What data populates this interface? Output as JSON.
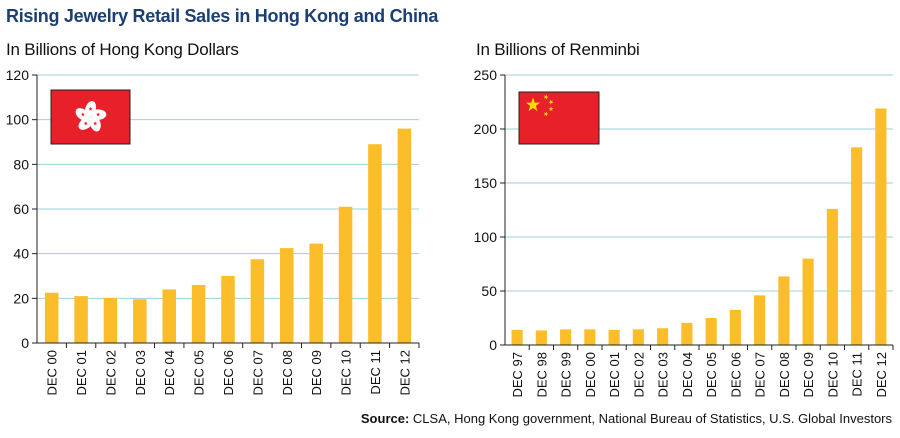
{
  "title": "Rising Jewelry Retail Sales in Hong Kong and China",
  "source": {
    "label": "Source:",
    "text": "CLSA, Hong Kong government, National Bureau of Statistics, U.S. Global Investors"
  },
  "colors": {
    "bar": "#fbbd2a",
    "grid": "#9fd0de",
    "title": "#1b3f73",
    "flag_red": "#e8202a",
    "star_yellow": "#ffde00"
  },
  "chart_data": [
    {
      "type": "bar",
      "title": "In Billions of Hong Kong Dollars",
      "flag": "hong-kong-flag",
      "categories": [
        "DEC 00",
        "DEC 01",
        "DEC 02",
        "DEC 03",
        "DEC 04",
        "DEC 05",
        "DEC 06",
        "DEC 07",
        "DEC 08",
        "DEC 09",
        "DEC 10",
        "DEC 11",
        "DEC 12"
      ],
      "values": [
        22.5,
        21,
        20.2,
        19.6,
        24,
        26,
        30,
        37.5,
        42.5,
        44.5,
        61,
        89,
        96
      ],
      "ylim": [
        0,
        120
      ],
      "yticks": [
        0,
        20,
        40,
        60,
        80,
        100,
        120
      ],
      "grid": true
    },
    {
      "type": "bar",
      "title": "In Billions of Renminbi",
      "flag": "china-flag",
      "categories": [
        "DEC 97",
        "DEC 98",
        "DEC 99",
        "DEC 00",
        "DEC 01",
        "DEC 02",
        "DEC 03",
        "DEC 04",
        "DEC 05",
        "DEC 06",
        "DEC 07",
        "DEC 08",
        "DEC 09",
        "DEC 10",
        "DEC 11",
        "DEC 12"
      ],
      "values": [
        14,
        13.5,
        14.5,
        14.5,
        14,
        14.5,
        15.5,
        20.5,
        25,
        32.5,
        46,
        63.5,
        80,
        126,
        183,
        219
      ],
      "ylim": [
        0,
        250
      ],
      "yticks": [
        0,
        50,
        100,
        150,
        200,
        250
      ],
      "grid": true
    }
  ]
}
